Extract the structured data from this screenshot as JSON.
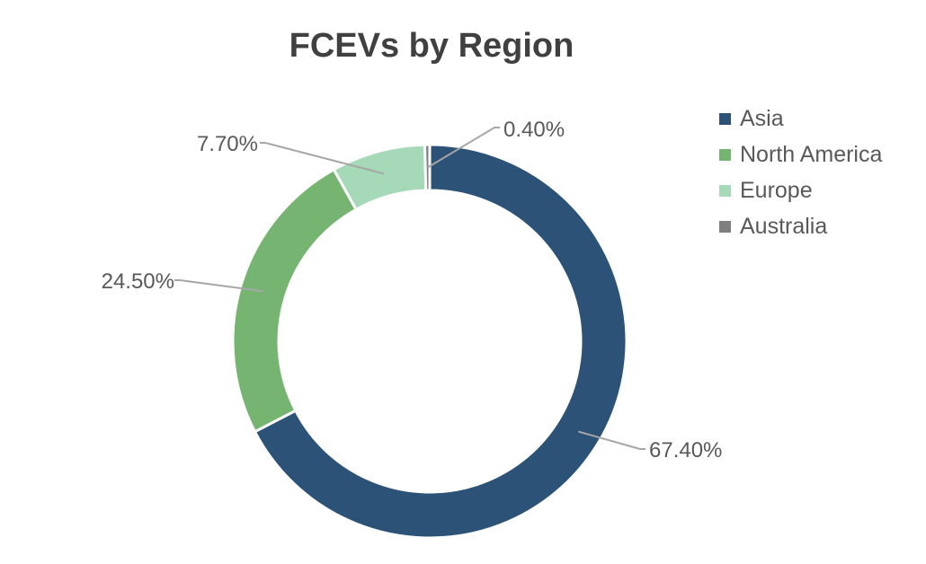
{
  "chart_data": {
    "type": "pie",
    "subtype": "doughnut",
    "title": "FCEVs by Region",
    "categories": [
      "Asia",
      "North America",
      "Europe",
      "Australia"
    ],
    "values": [
      67.4,
      24.5,
      7.7,
      0.4
    ],
    "data_labels": [
      "67.40%",
      "24.50%",
      "7.70%",
      "0.40%"
    ],
    "colors": [
      "#2c5377",
      "#76b571",
      "#a6d9b7",
      "#7f7f7f"
    ],
    "legend": "right",
    "start_angle": "top"
  }
}
